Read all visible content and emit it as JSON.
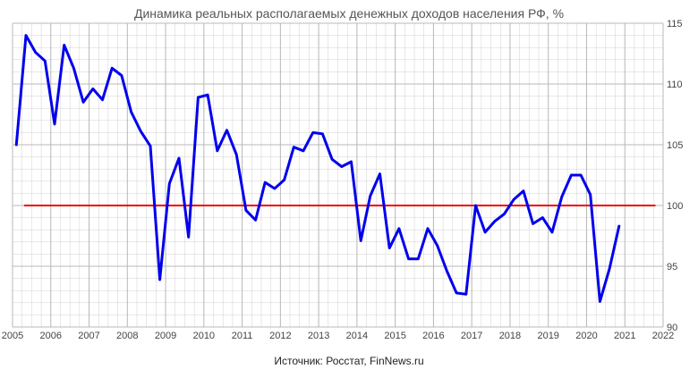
{
  "chart_data": {
    "type": "line",
    "title": "Динамика реальных располагаемых денежных доходов населения РФ, %",
    "source": "Источник: Росстат, FinNews.ru",
    "xlabel": "",
    "ylabel": "",
    "xlim": [
      2005,
      2022
    ],
    "ylim": [
      90,
      115
    ],
    "x_ticks": [
      2005,
      2006,
      2007,
      2008,
      2009,
      2010,
      2011,
      2012,
      2013,
      2014,
      2015,
      2016,
      2017,
      2018,
      2019,
      2020,
      2021,
      2022
    ],
    "y_ticks": [
      90,
      95,
      100,
      105,
      110,
      115
    ],
    "x_tick_labels": [
      "2005",
      "2006",
      "2007",
      "2008",
      "2009",
      "2010",
      "2011",
      "2012",
      "2013",
      "2014",
      "2015",
      "2016",
      "2017",
      "2018",
      "2019",
      "2020",
      "2021",
      "2022"
    ],
    "y_tick_labels": [
      "90",
      "95",
      "100",
      "105",
      "110",
      "115"
    ],
    "y_axis_side": "right",
    "grid": true,
    "colors": {
      "series": "#0000ee",
      "baseline": "#ee0000",
      "grid": "#d0d0d0"
    },
    "baseline": {
      "y": 100,
      "x_start": 2005.3,
      "x_end": 2021.8
    },
    "series": [
      {
        "x": [
          2005.1,
          2005.35,
          2005.6,
          2005.85,
          2006.1,
          2006.35,
          2006.6,
          2006.85,
          2007.1,
          2007.35,
          2007.6,
          2007.85,
          2008.1,
          2008.35,
          2008.6,
          2008.85,
          2009.1,
          2009.35,
          2009.6,
          2009.85,
          2010.1,
          2010.35,
          2010.6,
          2010.85,
          2011.1,
          2011.35,
          2011.6,
          2011.85,
          2012.1,
          2012.35,
          2012.6,
          2012.85,
          2013.1,
          2013.35,
          2013.6,
          2013.85,
          2014.1,
          2014.35,
          2014.6,
          2014.85,
          2015.1,
          2015.35,
          2015.6,
          2015.85,
          2016.1,
          2016.35,
          2016.6,
          2016.85,
          2017.1,
          2017.35,
          2017.6,
          2017.85,
          2018.1,
          2018.35,
          2018.6,
          2018.85,
          2019.1,
          2019.35,
          2019.6,
          2019.85,
          2020.1,
          2020.35,
          2020.6,
          2020.85
        ],
        "y": [
          105.0,
          114.0,
          112.6,
          111.9,
          106.7,
          113.2,
          111.3,
          108.5,
          109.6,
          108.7,
          111.3,
          110.7,
          107.7,
          106.1,
          104.9,
          93.9,
          101.8,
          103.9,
          97.4,
          108.9,
          109.1,
          104.5,
          106.2,
          104.2,
          99.6,
          98.8,
          101.9,
          101.4,
          102.1,
          104.8,
          104.5,
          106.0,
          105.9,
          103.8,
          103.2,
          103.6,
          97.1,
          100.8,
          102.6,
          96.5,
          98.1,
          95.6,
          95.6,
          98.1,
          96.7,
          94.6,
          92.8,
          92.7,
          100.0,
          97.8,
          98.7,
          99.3,
          100.5,
          101.2,
          98.5,
          99.0,
          97.8,
          100.7,
          102.5,
          102.5,
          100.9,
          92.1,
          94.8,
          98.3
        ]
      }
    ]
  }
}
